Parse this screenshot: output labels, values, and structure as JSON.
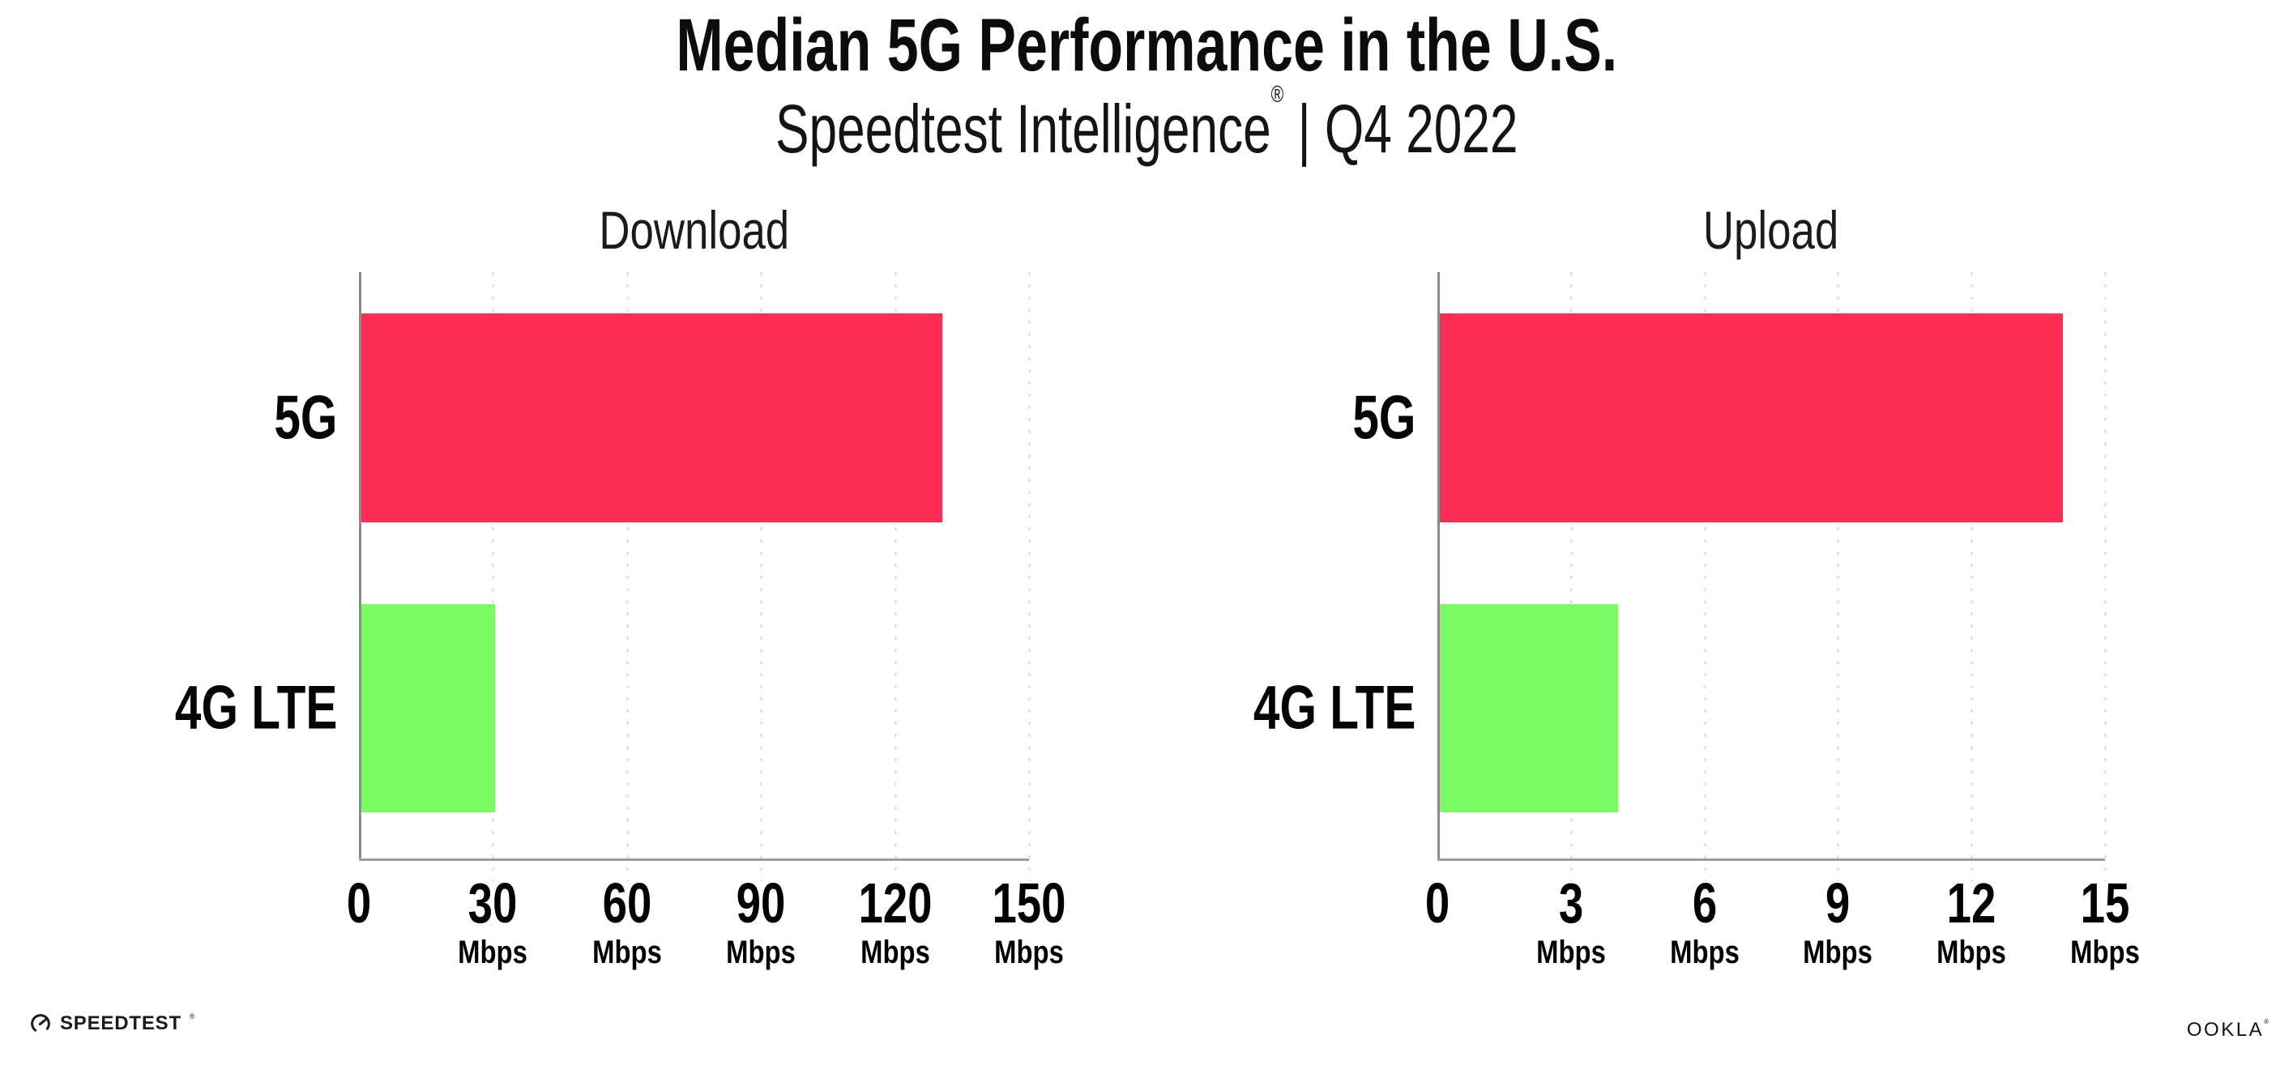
{
  "header": {
    "title": "Median 5G Performance in the U.S.",
    "subtitle_brand": "Speedtest Intelligence",
    "subtitle_reg": "®",
    "subtitle_rest": " | Q4 2022"
  },
  "chart_data": [
    {
      "type": "bar",
      "orientation": "horizontal",
      "title": "Download",
      "categories": [
        "5G",
        "4G LTE"
      ],
      "values": [
        130,
        30
      ],
      "unit": "Mbps",
      "xlim": [
        0,
        150
      ],
      "xticks": [
        0,
        30,
        60,
        90,
        120,
        150
      ],
      "grid": "dotted-vertical",
      "legend": "none",
      "bar_colors": [
        "#FD2D55",
        "#7CFA64"
      ]
    },
    {
      "type": "bar",
      "orientation": "horizontal",
      "title": "Upload",
      "categories": [
        "5G",
        "4G LTE"
      ],
      "values": [
        14,
        4
      ],
      "unit": "Mbps",
      "xlim": [
        0,
        15
      ],
      "xticks": [
        0,
        3,
        6,
        9,
        12,
        15
      ],
      "grid": "dotted-vertical",
      "legend": "none",
      "bar_colors": [
        "#FD2D55",
        "#7CFA64"
      ]
    }
  ],
  "footer": {
    "speedtest_label": "SPEEDTEST",
    "speedtest_reg": "®",
    "ookla_label": "OOKLA",
    "ookla_reg": "®"
  },
  "colors": {
    "bar_5g": "#FD2D55",
    "bar_4g_lte": "#7CFA64",
    "axis_line": "#9c9c9c",
    "gridline": "#e4e4ee",
    "text": "#000000"
  }
}
